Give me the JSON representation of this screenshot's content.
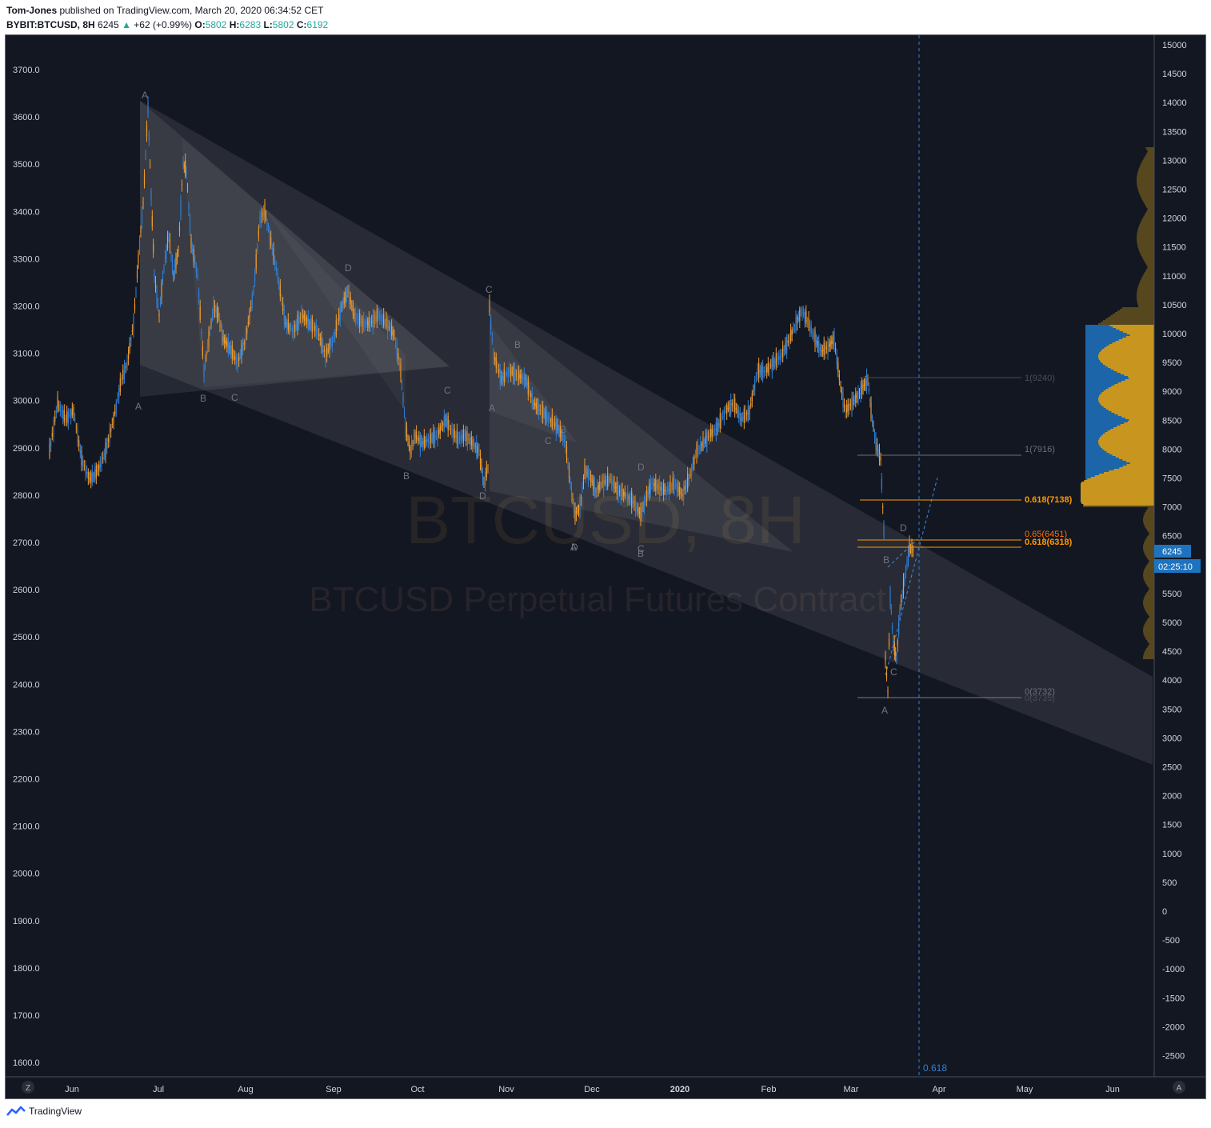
{
  "header": {
    "author": "Tom-Jones",
    "published_text": " published on TradingView.com, March 20, 2020 06:34:52 CET",
    "symbol": "BYBIT:BTCUSD, 8H",
    "last": "6245",
    "change": "+62 (+0.99%)",
    "o_label": "O:",
    "o_value": "5802",
    "h_label": "H:",
    "h_value": "6283",
    "l_label": "L:",
    "l_value": "5802",
    "c_label": "C:",
    "c_value": "6192"
  },
  "watermark": {
    "line1": "BTCUSD, 8H",
    "line2": "BTCUSD Perpetual Futures Contract"
  },
  "left_axis": [
    "3700.0",
    "3600.0",
    "3500.0",
    "3400.0",
    "3300.0",
    "3200.0",
    "3100.0",
    "3000.0",
    "2900.0",
    "2800.0",
    "2700.0",
    "2600.0",
    "2500.0",
    "2400.0",
    "2300.0",
    "2200.0",
    "2100.0",
    "2000.0",
    "1900.0",
    "1800.0",
    "1700.0",
    "1600.0"
  ],
  "right_axis": [
    "15000",
    "14500",
    "14000",
    "13500",
    "13000",
    "12500",
    "12000",
    "11500",
    "11000",
    "10500",
    "10000",
    "9500",
    "9000",
    "8500",
    "8000",
    "7500",
    "7000",
    "6500",
    "6000",
    "5500",
    "5000",
    "4500",
    "4000",
    "3500",
    "3000",
    "2500",
    "2000",
    "1500",
    "1000",
    "500",
    "0",
    "-500",
    "-1000",
    "-1500",
    "-2000",
    "-2500"
  ],
  "time_axis": [
    "Jun",
    "Jul",
    "Aug",
    "Sep",
    "Oct",
    "Nov",
    "Dec",
    "2020",
    "Feb",
    "Mar",
    "Apr",
    "May",
    "Jun"
  ],
  "price_tag": "6245",
  "countdown_tag": "02:25:10",
  "z_button": "Z",
  "a_button": "A",
  "fib_labels": {
    "f1a": "1(9240)",
    "f1b": "1(7916)",
    "f618a": "0.618(7138)",
    "f65": "0.65(6451)",
    "f618b": "0.618(6318)",
    "f0a": "0(3732)",
    "f0b": "0(3735)",
    "vline": "0.618"
  },
  "wave_labels": [
    "A",
    "A",
    "B",
    "C",
    "D",
    "A",
    "B",
    "C",
    "D",
    "C",
    "B",
    "A",
    "C",
    "B",
    "D",
    "B",
    "D",
    "C",
    "D",
    "D",
    "A",
    "B",
    "C",
    "D"
  ],
  "brand": "TradingView",
  "colors": {
    "background": "#131722",
    "up_candle": "#2f7fd6",
    "down_candle": "#f39c2a",
    "fib_orange": "#ff9800",
    "volume_profile_down": "#c8961f",
    "volume_profile_up": "#1e73c0",
    "price_tag_bg": "#1e73c0"
  }
}
